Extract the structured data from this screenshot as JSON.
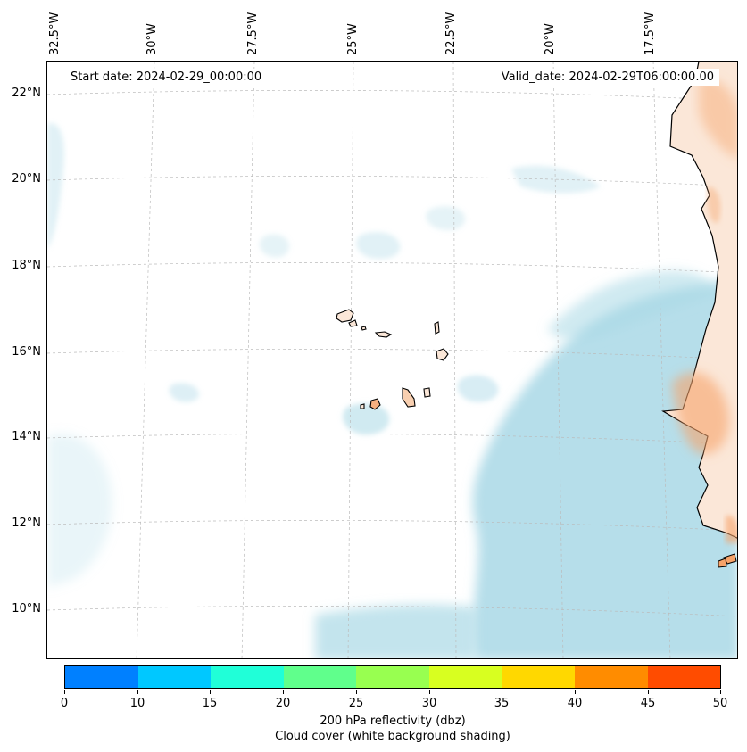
{
  "map": {
    "start_date": "Start date: 2024-02-29_00:00:00",
    "valid_date": "Valid_date: 2024-02-29T06:00:00.00",
    "lon_labels": [
      "32.5°W",
      "30°W",
      "27.5°W",
      "25°W",
      "22.5°W",
      "20°W",
      "17.5°W"
    ],
    "lat_labels": [
      "22°N",
      "20°N",
      "18°N",
      "16°N",
      "14°N",
      "12°N",
      "10°N"
    ]
  },
  "colors": {
    "cloud": "#a9d8e6",
    "land": "#f6a36a",
    "coast": "#000000",
    "grid": "#bbbbbb"
  },
  "colorbar": {
    "ticks": [
      "0",
      "10",
      "15",
      "20",
      "25",
      "30",
      "35",
      "40",
      "45",
      "50"
    ],
    "colors": [
      "#0080ff",
      "#00c8ff",
      "#20ffd8",
      "#60ff8c",
      "#98ff50",
      "#d8ff20",
      "#ffd800",
      "#ff8c00",
      "#ff4c00"
    ],
    "label_line1": "200 hPa reflectivity (dbz)",
    "label_line2": "Cloud cover (white background shading)"
  }
}
